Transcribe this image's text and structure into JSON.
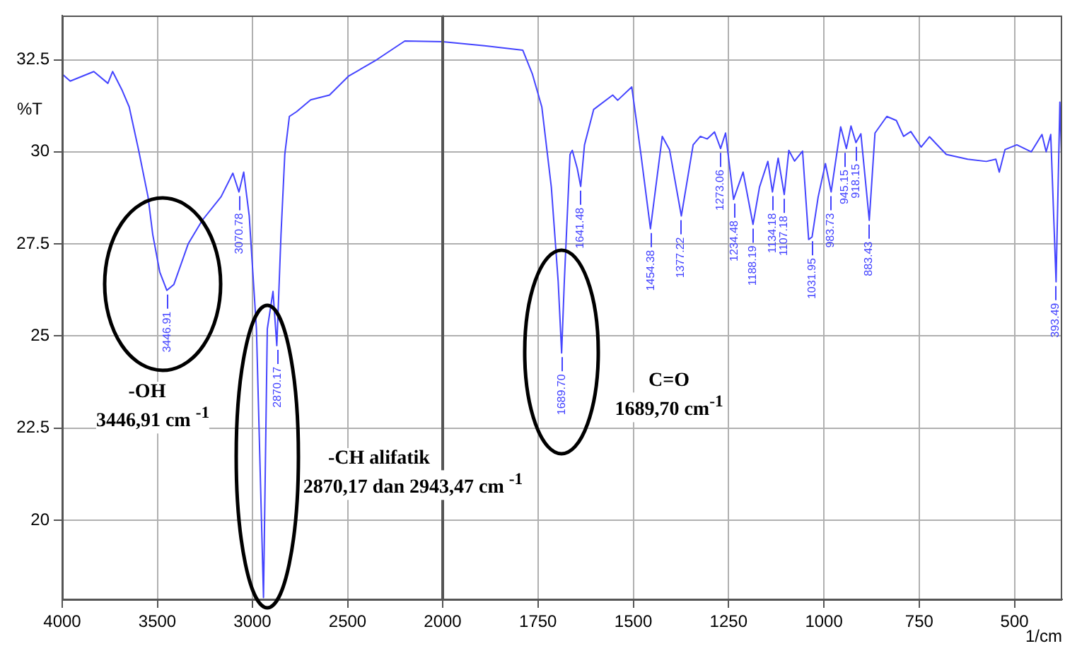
{
  "chart_data": [
    {
      "type": "line",
      "ylabel": "%T",
      "xlim": [
        4000,
        2000
      ],
      "xticks": [
        4000,
        3500,
        3000,
        2500,
        2000
      ],
      "ylim": [
        17.85,
        33.7
      ],
      "yticks": [
        20,
        22.5,
        25,
        27.5,
        30,
        32.5
      ],
      "grid": true,
      "legend": false,
      "series": [
        {
          "color": "#4444ff",
          "x": [
            4000,
            3958,
            3834,
            3760,
            3735,
            3685,
            3648,
            3599,
            3549,
            3524,
            3487,
            3450,
            3413,
            3338,
            3264,
            3165,
            3103,
            3071,
            3046,
            3017,
            2979,
            2942,
            2922,
            2892,
            2872,
            2850,
            2830,
            2806,
            2768,
            2694,
            2595,
            2496,
            2347,
            2199,
            2000
          ],
          "values": [
            32.11,
            31.92,
            32.18,
            31.86,
            32.18,
            31.67,
            31.22,
            30.06,
            28.78,
            27.75,
            26.73,
            26.24,
            26.4,
            27.5,
            28.14,
            28.78,
            29.42,
            28.91,
            29.45,
            28.26,
            25.19,
            17.9,
            25.19,
            26.21,
            24.74,
            27.75,
            29.93,
            30.96,
            31.09,
            31.41,
            31.54,
            32.05,
            32.5,
            33.01,
            32.99
          ]
        }
      ],
      "annotations": [
        {
          "text": "3446.91",
          "x": 3446.91,
          "y": 26.24
        },
        {
          "text": "3070.78",
          "x": 3070.78,
          "y": 28.91
        },
        {
          "text": "2870.17",
          "x": 2870.17,
          "y": 24.74
        },
        "-OH",
        "3446,91 cm $^{-1}$",
        "-CH alifatik",
        "2870,17 dan 2943,47 cm $^{-1}$"
      ]
    },
    {
      "type": "line",
      "xlabel": "1/cm",
      "xlim": [
        2000,
        375
      ],
      "xticks": [
        1750,
        1500,
        1250,
        1000,
        750,
        500
      ],
      "ylim": [
        17.85,
        33.7
      ],
      "yticks": [
        20,
        22.5,
        25,
        27.5,
        30,
        32.5
      ],
      "grid": true,
      "legend": false,
      "tick_labels": "x",
      "series": [
        {
          "color": "#4444ff",
          "x": [
            2000,
            1890,
            1790,
            1765,
            1740,
            1715,
            1697,
            1688,
            1681,
            1666,
            1660,
            1647,
            1638,
            1628,
            1604,
            1554,
            1541,
            1504,
            1480,
            1455,
            1424,
            1405,
            1374,
            1343,
            1324,
            1306,
            1287,
            1271,
            1258,
            1237,
            1212,
            1186,
            1169,
            1147,
            1135,
            1120,
            1104,
            1092,
            1077,
            1056,
            1040,
            1031,
            1015,
            996,
            981,
            956,
            941,
            929,
            916,
            903,
            881,
            866,
            835,
            810,
            791,
            772,
            745,
            723,
            679,
            623,
            574,
            549,
            540,
            525,
            494,
            456,
            428,
            417,
            405,
            391,
            381,
            375
          ],
          "values": [
            32.99,
            32.88,
            32.76,
            32.12,
            31.22,
            29.04,
            26.47,
            24.54,
            26.47,
            29.93,
            30.04,
            29.55,
            29.06,
            30.19,
            31.15,
            31.54,
            31.4,
            31.76,
            29.93,
            27.91,
            30.42,
            30.06,
            28.26,
            30.19,
            30.42,
            30.35,
            30.54,
            30.09,
            30.51,
            28.71,
            29.45,
            28.03,
            29.04,
            29.74,
            28.91,
            29.83,
            28.84,
            30.04,
            29.75,
            30.02,
            27.62,
            27.69,
            28.78,
            29.68,
            28.91,
            30.68,
            30.09,
            30.7,
            30.25,
            30.49,
            28.14,
            30.51,
            30.96,
            30.85,
            30.42,
            30.55,
            30.13,
            30.41,
            29.93,
            29.8,
            29.74,
            29.8,
            29.45,
            30.06,
            30.19,
            30.0,
            30.47,
            30.0,
            30.47,
            26.47,
            31.35,
            29.3
          ]
        }
      ],
      "annotations": [
        {
          "text": "1689.70",
          "x": 1689.7,
          "y": 24.54
        },
        {
          "text": "1641.48",
          "x": 1641.48,
          "y": 29.06
        },
        {
          "text": "1454.38",
          "x": 1454.38,
          "y": 27.91
        },
        {
          "text": "1377.22",
          "x": 1377.22,
          "y": 28.26
        },
        {
          "text": "1273.06",
          "x": 1273.06,
          "y": 30.09
        },
        {
          "text": "1234.48",
          "x": 1234.48,
          "y": 28.71
        },
        {
          "text": "1188.19",
          "x": 1188.19,
          "y": 28.03
        },
        {
          "text": "1134.18",
          "x": 1134.18,
          "y": 28.91
        },
        {
          "text": "1107.18",
          "x": 1107.18,
          "y": 28.84
        },
        {
          "text": "1031.95",
          "x": 1031.95,
          "y": 27.69
        },
        {
          "text": "983.73",
          "x": 983.73,
          "y": 28.91
        },
        {
          "text": "945.15",
          "x": 945.15,
          "y": 30.09
        },
        {
          "text": "918.15",
          "x": 918.15,
          "y": 30.25
        },
        {
          "text": "883.43",
          "x": 883.43,
          "y": 28.14
        },
        {
          "text": "393.49",
          "x": 393.49,
          "y": 26.47
        },
        "C=O",
        "1689,70 cm$^{-1}$"
      ]
    }
  ]
}
